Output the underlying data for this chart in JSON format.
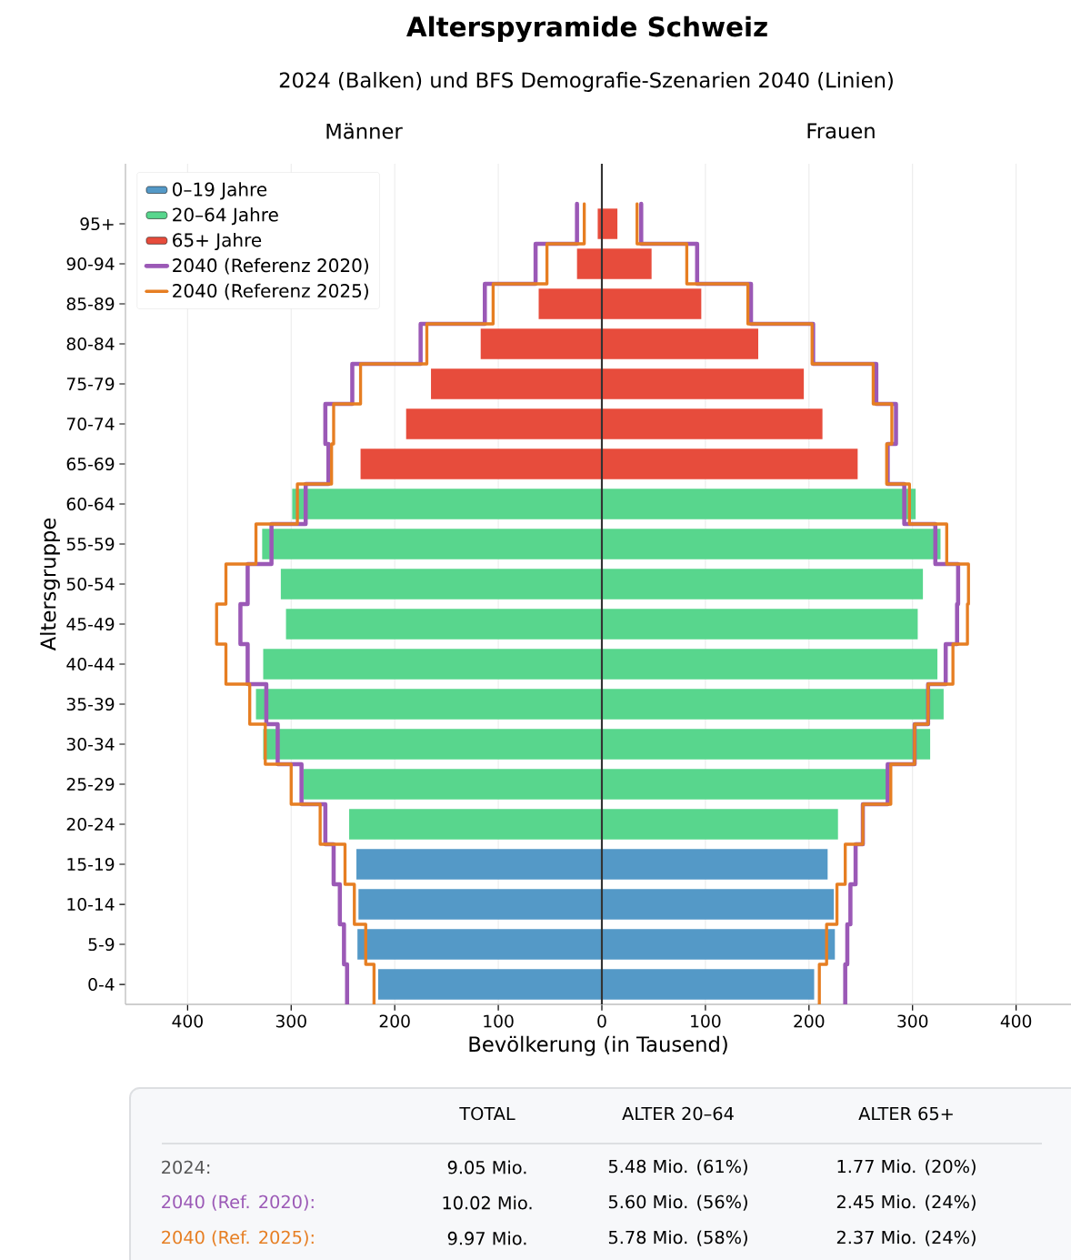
{
  "chart_data": {
    "type": "bar",
    "orientation": "horizontal",
    "stacked": true,
    "title": "Alterspyramide Schweiz",
    "subtitle": "2024 (Balken) und BFS Demografie-Szenarien 2040 (Linien)",
    "xlabel": "Bevölkerung (in Tausend)",
    "ylabel": "Altersgruppe",
    "categories": [
      "95+",
      "90-94",
      "85-89",
      "80-84",
      "75-79",
      "70-74",
      "65-69",
      "60-64",
      "55-59",
      "50-54",
      "45-49",
      "40-44",
      "35-39",
      "30-34",
      "25-29",
      "20-24",
      "15-19",
      "10-14",
      "5-9",
      "0-4"
    ],
    "series": [
      {
        "name": "0–19 Jahre",
        "color": "#5499c7",
        "values": [
          null,
          null,
          null,
          null,
          null,
          null,
          null,
          null,
          null,
          null,
          null,
          null,
          null,
          null,
          null,
          null,
          -237,
          -235,
          -236,
          -216
        ]
      },
      {
        "name": "20–64 Jahre",
        "color": "#58d68d",
        "values": [
          null,
          null,
          null,
          null,
          null,
          null,
          null,
          -299,
          -328,
          -310,
          -305,
          -327,
          -334,
          -327,
          -288,
          -244,
          null,
          null,
          null,
          null
        ]
      },
      {
        "name": "65+ Jahre",
        "color": "#e74c3c",
        "values": [
          -4,
          -24,
          -61,
          -117,
          -165,
          -189,
          -233,
          null,
          null,
          null,
          null,
          null,
          null,
          null,
          null,
          null,
          null,
          null,
          null,
          null
        ]
      },
      {
        "color": "#5499c7",
        "values": [
          null,
          null,
          null,
          null,
          null,
          null,
          null,
          null,
          null,
          null,
          null,
          null,
          null,
          null,
          null,
          null,
          218,
          224,
          225,
          205
        ]
      },
      {
        "color": "#58d68d",
        "values": [
          null,
          null,
          null,
          null,
          null,
          null,
          null,
          303,
          327,
          310,
          305,
          324,
          330,
          317,
          275,
          228,
          null,
          null,
          null,
          null
        ]
      },
      {
        "color": "#e74c3c",
        "values": [
          15,
          48,
          96,
          151,
          195,
          213,
          247,
          null,
          null,
          null,
          null,
          null,
          null,
          null,
          null,
          null,
          null,
          null,
          null,
          null
        ]
      },
      {
        "name": "2040 (Referenz 2020)",
        "type": "step",
        "color": "#9b59b6",
        "values": [
          -24,
          -64,
          -113,
          -175,
          -241,
          -267,
          -264,
          -286,
          -319,
          -342,
          -349,
          -342,
          -324,
          -313,
          -290,
          -267,
          -259,
          -253,
          -249,
          -246
        ]
      },
      {
        "type": "step",
        "color": "#9b59b6",
        "values": [
          38,
          92,
          144,
          204,
          265,
          284,
          276,
          292,
          322,
          344,
          343,
          332,
          315,
          302,
          276,
          252,
          245,
          240,
          237,
          235
        ]
      },
      {
        "name": "2040 (Referenz 2025)",
        "type": "step",
        "color": "#e67e22",
        "values": [
          -17,
          -53,
          -105,
          -169,
          -233,
          -259,
          -261,
          -294,
          -334,
          -363,
          -372,
          -363,
          -340,
          -325,
          -300,
          -272,
          -248,
          -239,
          -228,
          -220
        ]
      },
      {
        "type": "step",
        "color": "#e67e22",
        "values": [
          34,
          82,
          141,
          203,
          262,
          280,
          275,
          297,
          333,
          354,
          353,
          339,
          315,
          302,
          279,
          252,
          235,
          227,
          217,
          210
        ]
      }
    ],
    "xlim": [
      -460,
      453
    ],
    "xticks": [
      {
        "value": -400,
        "label": "400"
      },
      {
        "value": -300,
        "label": "300"
      },
      {
        "value": -200,
        "label": "200"
      },
      {
        "value": -100,
        "label": "100"
      },
      0,
      100,
      200,
      300,
      400
    ],
    "grid": "x",
    "legend": "top left",
    "ref_lines": [
      {
        "axis": "x",
        "value": 0,
        "color": "#333333"
      }
    ],
    "annotations": [
      "Männer",
      "Frauen",
      "TOTAL",
      "ALTER 20–64",
      "ALTER 65+",
      "2024:",
      "9.05 Mio.",
      "5.48 Mio. (61%)",
      "1.77 Mio. (20%)",
      "2040 (Ref. 2020):",
      "10.02 Mio.",
      "5.60 Mio. (56%)",
      "2.45 Mio. (24%)",
      "2040 (Ref. 2025):",
      "9.97 Mio.",
      "5.78 Mio. (58%)",
      "2.37 Mio. (24%)"
    ]
  }
}
